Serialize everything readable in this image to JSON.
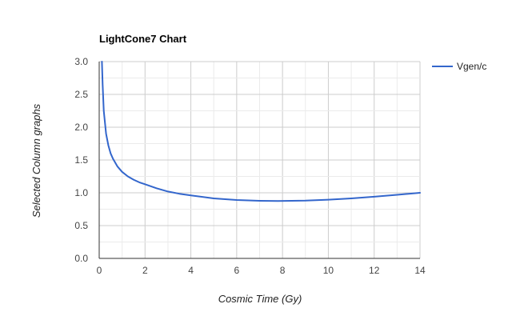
{
  "chart_data": {
    "type": "line",
    "title": "LightCone7 Chart",
    "xlabel": "Cosmic Time (Gy)",
    "ylabel": "Selected Column graphs",
    "xlim": [
      0,
      14
    ],
    "ylim": [
      0,
      3
    ],
    "x_ticks": [
      "0",
      "2",
      "4",
      "6",
      "8",
      "10",
      "12",
      "14"
    ],
    "y_ticks": [
      "0.0",
      "0.5",
      "1.0",
      "1.5",
      "2.0",
      "2.5",
      "3.0"
    ],
    "grid": true,
    "legend_position": "right",
    "series": [
      {
        "name": "Vgen/c",
        "color": "#3366cc",
        "x": [
          0.12,
          0.15,
          0.2,
          0.3,
          0.4,
          0.5,
          0.6,
          0.8,
          1.0,
          1.25,
          1.5,
          1.75,
          2.0,
          2.5,
          3.0,
          3.5,
          4.0,
          5.0,
          6.0,
          7.0,
          7.8,
          9.0,
          10.0,
          11.0,
          12.0,
          13.0,
          14.0
        ],
        "y": [
          3.0,
          2.65,
          2.25,
          1.9,
          1.72,
          1.6,
          1.52,
          1.4,
          1.32,
          1.25,
          1.2,
          1.16,
          1.13,
          1.07,
          1.02,
          0.985,
          0.96,
          0.915,
          0.89,
          0.878,
          0.875,
          0.88,
          0.895,
          0.915,
          0.94,
          0.97,
          1.0
        ]
      }
    ]
  }
}
